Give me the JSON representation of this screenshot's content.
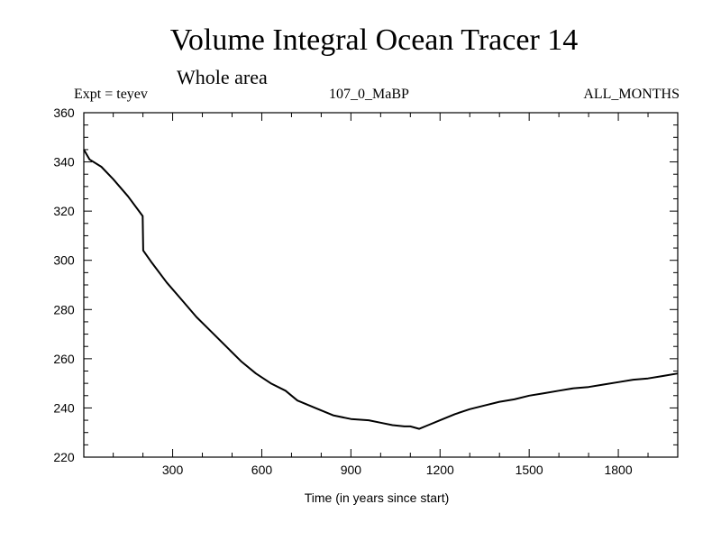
{
  "chart_data": {
    "type": "line",
    "title": "Volume Integral Ocean Tracer 14",
    "subtitle": "Whole area",
    "expt_label": "Expt = teyev",
    "run_label": "107_0_MaBP",
    "months_label": "ALL_MONTHS",
    "xlabel": "Time (in years since start)",
    "ylabel": "",
    "xlim": [
      1,
      2000
    ],
    "ylim": [
      220,
      360
    ],
    "xticks": [
      300,
      600,
      900,
      1200,
      1500,
      1800
    ],
    "yticks": [
      220,
      240,
      260,
      280,
      300,
      320,
      340,
      360
    ],
    "xtick_labels": [
      "300",
      "600",
      "900",
      "1200",
      "1500",
      "1800"
    ],
    "ytick_labels": [
      "220",
      "240",
      "260",
      "280",
      "300",
      "320",
      "340",
      "360"
    ],
    "grid": false,
    "series": [
      {
        "name": "Volume Integral Ocean Tracer 14",
        "x": [
          1,
          20,
          60,
          100,
          150,
          199,
          200,
          201,
          230,
          280,
          330,
          380,
          430,
          480,
          530,
          580,
          630,
          680,
          720,
          780,
          840,
          900,
          960,
          1000,
          1040,
          1080,
          1100,
          1130,
          1160,
          1200,
          1250,
          1300,
          1350,
          1400,
          1450,
          1500,
          1550,
          1600,
          1650,
          1700,
          1750,
          1800,
          1850,
          1900,
          1950,
          2000
        ],
        "y": [
          345,
          341,
          338,
          333,
          326,
          318,
          311,
          304,
          299,
          291,
          284,
          277,
          271,
          265,
          259,
          254,
          250,
          247,
          243,
          240,
          237,
          235.5,
          235,
          234,
          233,
          232.5,
          232.5,
          231.5,
          233,
          235,
          237.5,
          239.5,
          241,
          242.5,
          243.5,
          245,
          246,
          247,
          248,
          248.5,
          249.5,
          250.5,
          251.5,
          252,
          253,
          254
        ]
      }
    ]
  }
}
